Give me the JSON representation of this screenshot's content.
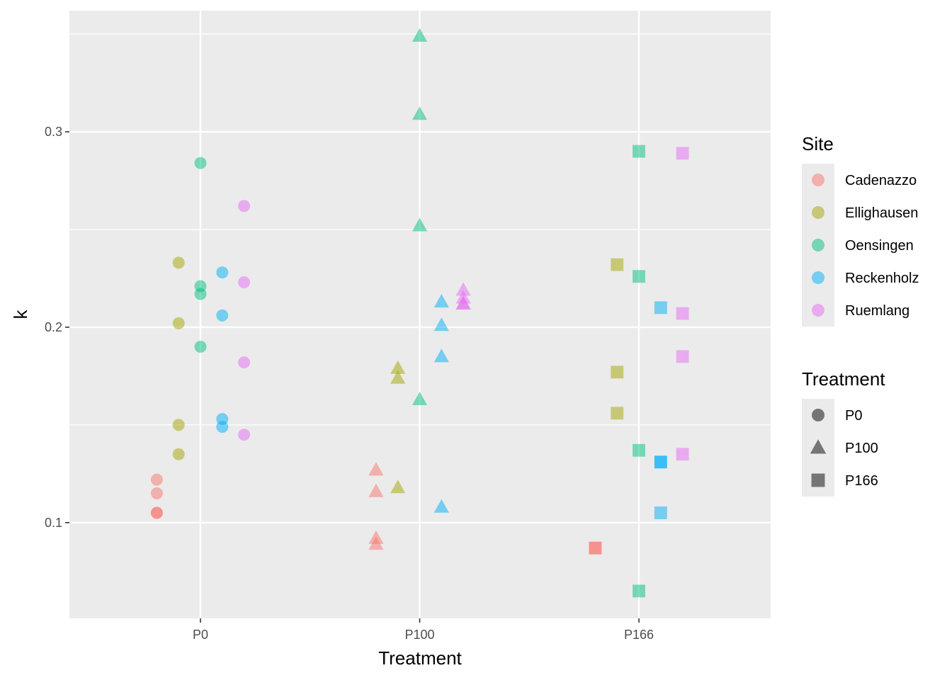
{
  "chart_data": {
    "type": "scatter",
    "xlabel": "Treatment",
    "ylabel": "k",
    "categories": [
      "P0",
      "P100",
      "P166"
    ],
    "y_ticks": [
      0.1,
      0.2,
      0.3
    ],
    "y_tick_labels": [
      "0.1",
      "0.2",
      "0.3"
    ],
    "ylim": [
      0.051,
      0.362
    ],
    "grid": true,
    "legend_position": "right",
    "sites": [
      {
        "name": "Cadenazzo",
        "color": "#F8766D"
      },
      {
        "name": "Ellighausen",
        "color": "#A3A500"
      },
      {
        "name": "Oensingen",
        "color": "#00BF7D"
      },
      {
        "name": "Reckenholz",
        "color": "#00B0F6"
      },
      {
        "name": "Ruemlang",
        "color": "#E76BF3"
      }
    ],
    "treatments": [
      {
        "name": "P0",
        "shape": "circle"
      },
      {
        "name": "P100",
        "shape": "triangle"
      },
      {
        "name": "P166",
        "shape": "square"
      }
    ],
    "legend_titles": {
      "site": "Site",
      "treatment": "Treatment"
    },
    "series": [
      {
        "site": "Cadenazzo",
        "points": [
          {
            "x": "P0",
            "y": 0.122
          },
          {
            "x": "P0",
            "y": 0.115
          },
          {
            "x": "P0",
            "y": 0.105
          },
          {
            "x": "P0",
            "y": 0.105
          },
          {
            "x": "P100",
            "y": 0.127
          },
          {
            "x": "P100",
            "y": 0.116
          },
          {
            "x": "P100",
            "y": 0.092
          },
          {
            "x": "P100",
            "y": 0.089
          },
          {
            "x": "P166",
            "y": 0.087
          },
          {
            "x": "P166",
            "y": 0.087
          }
        ]
      },
      {
        "site": "Ellighausen",
        "points": [
          {
            "x": "P0",
            "y": 0.233
          },
          {
            "x": "P0",
            "y": 0.202
          },
          {
            "x": "P0",
            "y": 0.15
          },
          {
            "x": "P0",
            "y": 0.135
          },
          {
            "x": "P100",
            "y": 0.179
          },
          {
            "x": "P100",
            "y": 0.174
          },
          {
            "x": "P100",
            "y": 0.118
          },
          {
            "x": "P166",
            "y": 0.232
          },
          {
            "x": "P166",
            "y": 0.177
          },
          {
            "x": "P166",
            "y": 0.156
          }
        ]
      },
      {
        "site": "Oensingen",
        "points": [
          {
            "x": "P0",
            "y": 0.284
          },
          {
            "x": "P0",
            "y": 0.221
          },
          {
            "x": "P0",
            "y": 0.217
          },
          {
            "x": "P0",
            "y": 0.19
          },
          {
            "x": "P100",
            "y": 0.349
          },
          {
            "x": "P100",
            "y": 0.309
          },
          {
            "x": "P100",
            "y": 0.252
          },
          {
            "x": "P100",
            "y": 0.163
          },
          {
            "x": "P166",
            "y": 0.29
          },
          {
            "x": "P166",
            "y": 0.226
          },
          {
            "x": "P166",
            "y": 0.137
          },
          {
            "x": "P166",
            "y": 0.065
          }
        ]
      },
      {
        "site": "Reckenholz",
        "points": [
          {
            "x": "P0",
            "y": 0.228
          },
          {
            "x": "P0",
            "y": 0.206
          },
          {
            "x": "P0",
            "y": 0.153
          },
          {
            "x": "P0",
            "y": 0.149
          },
          {
            "x": "P100",
            "y": 0.213
          },
          {
            "x": "P100",
            "y": 0.201
          },
          {
            "x": "P100",
            "y": 0.185
          },
          {
            "x": "P100",
            "y": 0.108
          },
          {
            "x": "P166",
            "y": 0.21
          },
          {
            "x": "P166",
            "y": 0.131
          },
          {
            "x": "P166",
            "y": 0.131
          },
          {
            "x": "P166",
            "y": 0.105
          }
        ]
      },
      {
        "site": "Ruemlang",
        "points": [
          {
            "x": "P0",
            "y": 0.262
          },
          {
            "x": "P0",
            "y": 0.223
          },
          {
            "x": "P0",
            "y": 0.182
          },
          {
            "x": "P0",
            "y": 0.145
          },
          {
            "x": "P100",
            "y": 0.219
          },
          {
            "x": "P100",
            "y": 0.215
          },
          {
            "x": "P100",
            "y": 0.212
          },
          {
            "x": "P100",
            "y": 0.212
          },
          {
            "x": "P166",
            "y": 0.289
          },
          {
            "x": "P166",
            "y": 0.207
          },
          {
            "x": "P166",
            "y": 0.185
          },
          {
            "x": "P166",
            "y": 0.135
          }
        ]
      }
    ]
  }
}
